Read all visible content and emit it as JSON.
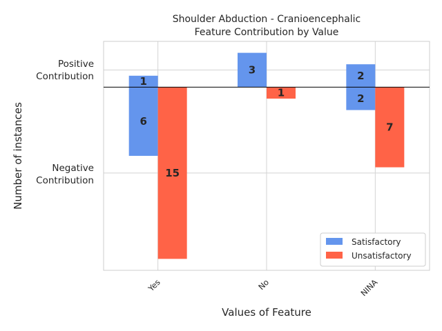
{
  "chart_data": {
    "type": "bar",
    "title_lines": [
      "Shoulder Abduction - Cranioencephalic",
      "Feature Contribution by Value"
    ],
    "xlabel": "Values of Feature",
    "ylabel": "Number of instances",
    "y_tick_labels": [
      {
        "value": 1.5,
        "lines": [
          "Positive",
          "Contribution"
        ]
      },
      {
        "value": -7.5,
        "lines": [
          "Negative",
          "Contribution"
        ]
      }
    ],
    "ylim": [
      -16,
      4
    ],
    "categories": [
      "Yes",
      "No",
      "NINA"
    ],
    "series": [
      {
        "name": "Satisfactory",
        "color": "#6495ED",
        "values": [
          1,
          3,
          2
        ],
        "negative_values": [
          -6,
          0,
          -2
        ]
      },
      {
        "name": "Unsatisfactory",
        "color": "#FF6347",
        "values": [
          0,
          0,
          0
        ],
        "negative_values": [
          -15,
          -1,
          -7
        ]
      }
    ],
    "data_labels": [
      {
        "category": "Yes",
        "series": "Satisfactory",
        "text": "1",
        "at": 0.5
      },
      {
        "category": "Yes",
        "series": "Satisfactory",
        "text": "6",
        "at": -3
      },
      {
        "category": "Yes",
        "series": "Unsatisfactory",
        "text": "15",
        "at": -7.5
      },
      {
        "category": "No",
        "series": "Satisfactory",
        "text": "3",
        "at": 1.5
      },
      {
        "category": "No",
        "series": "Unsatisfactory",
        "text": "1",
        "at": -0.5
      },
      {
        "category": "NINA",
        "series": "Satisfactory",
        "text": "2",
        "at": 1
      },
      {
        "category": "NINA",
        "series": "Satisfactory",
        "text": "2",
        "at": -1
      },
      {
        "category": "NINA",
        "series": "Unsatisfactory",
        "text": "7",
        "at": -3.5
      }
    ],
    "grid": true,
    "legend_position": "lower-right"
  }
}
